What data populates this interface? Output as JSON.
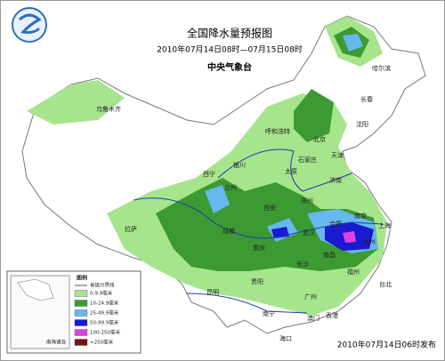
{
  "header": {
    "title": "全国降水量预报图",
    "subtitle": "2010年07月14日08时—07月15日08时",
    "issuer": "中央气象台"
  },
  "cities": [
    {
      "name": "乌鲁木齐"
    },
    {
      "name": "哈尔滨"
    },
    {
      "name": "长春"
    },
    {
      "name": "沈阳"
    },
    {
      "name": "呼和浩特"
    },
    {
      "name": "北京"
    },
    {
      "name": "天津"
    },
    {
      "name": "石家庄"
    },
    {
      "name": "太原"
    },
    {
      "name": "济南"
    },
    {
      "name": "银川"
    },
    {
      "name": "西宁"
    },
    {
      "name": "兰州"
    },
    {
      "name": "郑州"
    },
    {
      "name": "西安"
    },
    {
      "name": "南京"
    },
    {
      "name": "合肥"
    },
    {
      "name": "上海"
    },
    {
      "name": "拉萨"
    },
    {
      "name": "成都"
    },
    {
      "name": "武汉"
    },
    {
      "name": "杭州"
    },
    {
      "name": "重庆"
    },
    {
      "name": "长沙"
    },
    {
      "name": "南昌"
    },
    {
      "name": "贵阳"
    },
    {
      "name": "福州"
    },
    {
      "name": "昆明"
    },
    {
      "name": "台北"
    },
    {
      "name": "南宁"
    },
    {
      "name": "广州"
    },
    {
      "name": "澳门"
    },
    {
      "name": "香港"
    },
    {
      "name": "海口"
    }
  ],
  "legend": {
    "title": "图例",
    "boundary": "省级分界线",
    "items": [
      {
        "label": "0-9.9毫米",
        "color": "#a6e58c"
      },
      {
        "label": "10-24.9毫米",
        "color": "#3c9a32"
      },
      {
        "label": "25-49.9毫米",
        "color": "#66b8ee"
      },
      {
        "label": "50-99.9毫米",
        "color": "#1a1ad0"
      },
      {
        "label": "100-250毫米",
        "color": "#e040e0"
      },
      {
        "label": ">250毫米",
        "color": "#7a1010"
      }
    ]
  },
  "inset": {
    "label": "南海诸岛"
  },
  "footer": {
    "issued": "2010年07月14日06时发布"
  }
}
